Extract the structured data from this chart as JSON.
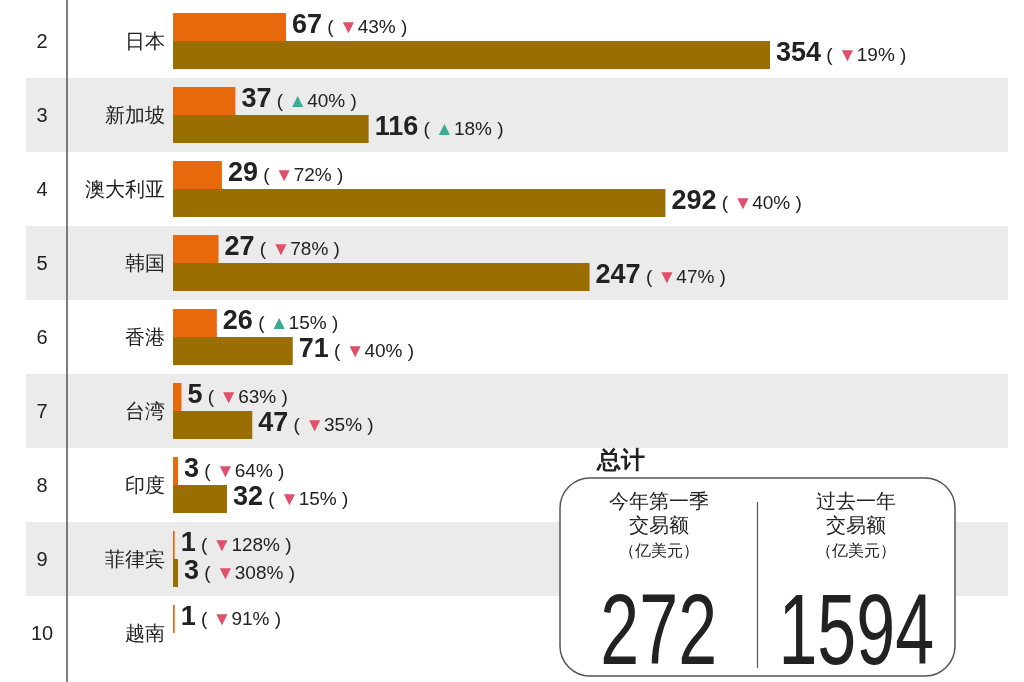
{
  "chart_data": [
    {
      "type": "bar",
      "orientation": "horizontal",
      "categories": [
        "日本",
        "新加坡",
        "澳大利亚",
        "韩国",
        "香港",
        "台湾",
        "印度",
        "菲律宾",
        "越南"
      ],
      "series": [
        {
          "color": "#e8690c",
          "values": [
            67,
            37,
            29,
            27,
            26,
            5,
            3,
            1,
            1
          ],
          "value_labels": [
            "67 ( ▼43% )",
            "37 ( ▲40% )",
            "29 ( ▼72% )",
            "27 ( ▼78% )",
            "26 ( ▲15% )",
            "5 ( ▼63% )",
            "3 ( ▼64% )",
            "1 ( ▼128% )",
            "1 ( ▼91% )"
          ]
        },
        {
          "color": "#9a6e02",
          "values": [
            354,
            116,
            292,
            247,
            71,
            47,
            32,
            3,
            null
          ],
          "value_labels": [
            "354 ( ▼19% )",
            "116 ( ▲18% )",
            "292 ( ▼40% )",
            "247 ( ▼47% )",
            "71 ( ▼40% )",
            "47 ( ▼35% )",
            "32 ( ▼15% )",
            "3 ( ▼308% )",
            null
          ]
        }
      ],
      "annotations": [
        "2",
        "3",
        "4",
        "5",
        "6",
        "7",
        "8",
        "9",
        "10"
      ]
    },
    {
      "type": "other",
      "title": "总计",
      "annotations": [
        "今年第一季",
        "交易额",
        "（亿美元）",
        "272",
        "过去一年",
        "交易额",
        "（亿美元）",
        "1594"
      ]
    }
  ]
}
